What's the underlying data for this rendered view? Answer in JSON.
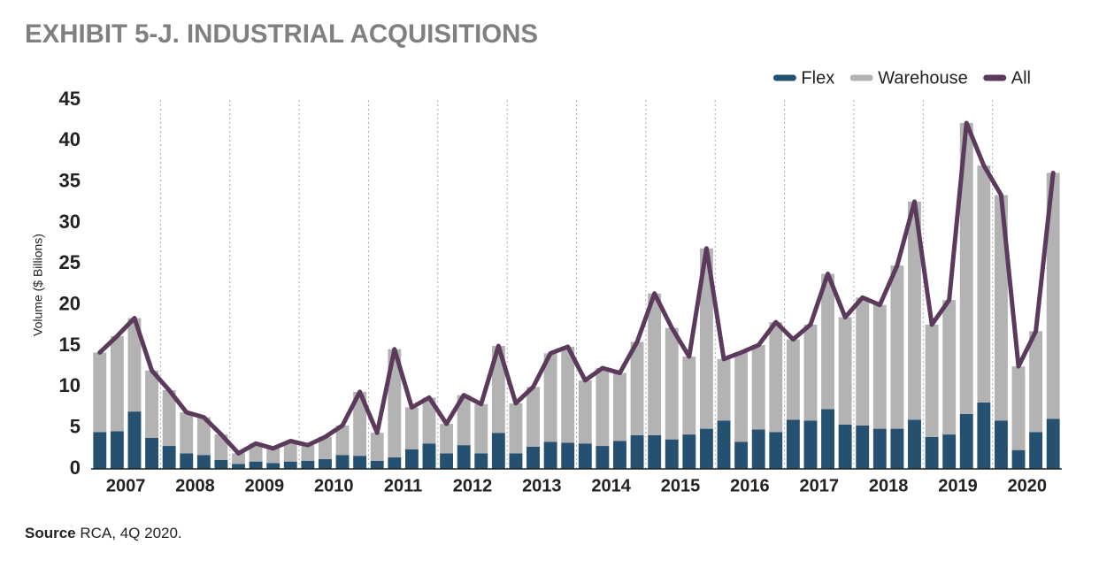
{
  "chart_data": {
    "type": "stacked-bar-line",
    "title": "EXHIBIT 5-J. INDUSTRIAL ACQUISITIONS",
    "y_label": "Volume ($ Billions)",
    "source_label": "Source",
    "source_text": "RCA, 4Q 2020.",
    "categories": [
      null,
      "2007",
      null,
      null,
      null,
      "2008",
      null,
      null,
      null,
      "2009",
      null,
      null,
      null,
      "2010",
      null,
      null,
      null,
      "2011",
      null,
      null,
      null,
      "2012",
      null,
      null,
      null,
      "2013",
      null,
      null,
      null,
      "2014",
      null,
      null,
      null,
      "2015",
      null,
      null,
      null,
      "2016",
      null,
      null,
      null,
      "2017",
      null,
      null,
      null,
      "2018",
      null,
      null,
      null,
      "2019",
      null,
      null,
      null,
      "2020",
      null,
      null
    ],
    "series": [
      {
        "name": "Flex",
        "color": "#25506f",
        "kind": "bar",
        "values": [
          4.5,
          4.6,
          7.0,
          3.8,
          2.8,
          1.9,
          1.7,
          1.1,
          0.6,
          0.9,
          0.7,
          0.9,
          1.0,
          1.2,
          1.7,
          1.6,
          1.0,
          1.4,
          2.4,
          3.1,
          1.9,
          2.9,
          1.9,
          4.4,
          1.9,
          2.7,
          3.3,
          3.2,
          3.1,
          2.8,
          3.4,
          4.1,
          4.1,
          3.6,
          4.2,
          4.9,
          5.9,
          3.3,
          4.8,
          4.5,
          6.0,
          5.9,
          7.3,
          5.4,
          5.3,
          4.9,
          4.9,
          6.0,
          3.9,
          4.2,
          6.7,
          8.1,
          5.9,
          2.3,
          4.5,
          6.1
        ]
      },
      {
        "name": "Warehouse",
        "color": "#b3b3b3",
        "kind": "bar",
        "values": [
          9.7,
          11.6,
          11.4,
          8.2,
          6.8,
          5.0,
          4.6,
          3.1,
          1.3,
          2.2,
          1.8,
          2.5,
          1.9,
          2.7,
          3.6,
          7.8,
          3.4,
          13.2,
          5.1,
          5.6,
          3.6,
          6.1,
          6.0,
          10.6,
          6.1,
          7.3,
          10.8,
          11.7,
          7.7,
          9.5,
          8.3,
          11.4,
          17.3,
          13.6,
          9.5,
          22.0,
          7.5,
          10.9,
          10.3,
          13.4,
          9.8,
          11.7,
          16.5,
          13.1,
          15.6,
          15.1,
          19.9,
          26.6,
          13.7,
          16.4,
          35.5,
          28.9,
          27.5,
          10.2,
          12.3,
          30.0
        ]
      },
      {
        "name": "All",
        "color": "#5b3a5b",
        "kind": "line",
        "values": [
          14.2,
          16.2,
          18.4,
          12.0,
          9.6,
          6.9,
          6.3,
          4.2,
          1.9,
          3.1,
          2.5,
          3.4,
          2.9,
          3.9,
          5.3,
          9.4,
          4.4,
          14.6,
          7.5,
          8.7,
          5.5,
          9.0,
          7.9,
          15.0,
          8.0,
          10.0,
          14.1,
          14.9,
          10.8,
          12.3,
          11.7,
          15.5,
          21.4,
          17.2,
          13.7,
          26.9,
          13.4,
          14.2,
          15.1,
          17.9,
          15.8,
          17.6,
          23.8,
          18.5,
          20.9,
          20.0,
          24.8,
          32.6,
          17.6,
          20.6,
          42.2,
          37.0,
          33.4,
          12.5,
          16.8,
          36.1
        ]
      }
    ],
    "ylim": [
      0,
      45
    ],
    "yticks": [
      0,
      5,
      10,
      15,
      20,
      25,
      30,
      35,
      40,
      45
    ],
    "xgrid": true,
    "legend": "top-right"
  }
}
